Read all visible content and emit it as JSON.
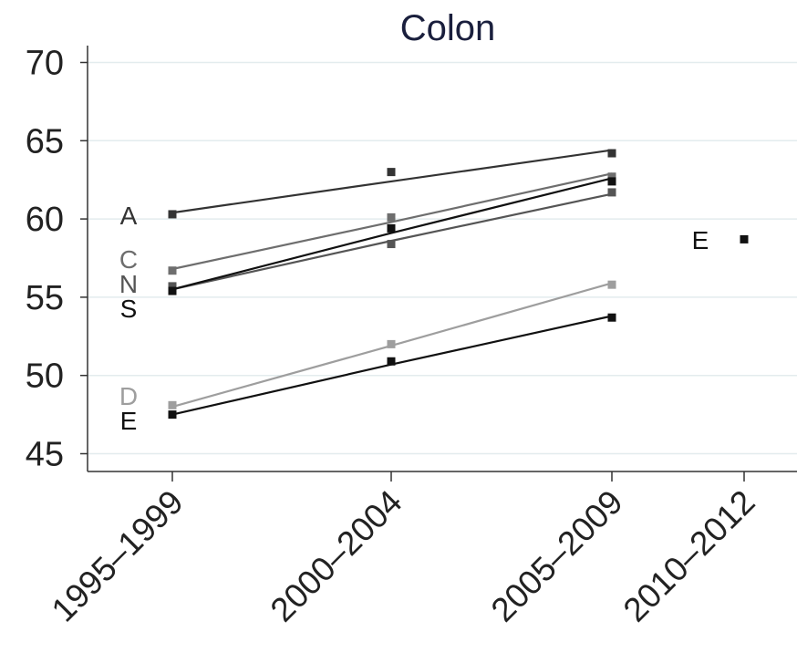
{
  "chart_data": {
    "type": "line",
    "title": "Colon",
    "xlabel": "",
    "ylabel": "",
    "categories": [
      "1995–1999",
      "2000–2004",
      "2005–2009",
      "2010–2012"
    ],
    "ylim": [
      44,
      71
    ],
    "yticks": [
      45,
      50,
      55,
      60,
      65,
      70
    ],
    "grid": true,
    "series": [
      {
        "name": "A",
        "color": "#333333",
        "points": [
          60.3,
          63.0,
          64.2,
          null
        ],
        "trend": [
          60.4,
          62.4,
          64.4,
          null
        ]
      },
      {
        "name": "C",
        "color": "#6e6e6e",
        "points": [
          56.7,
          60.1,
          62.7,
          null
        ],
        "trend": [
          56.8,
          59.8,
          62.9,
          null
        ]
      },
      {
        "name": "N",
        "color": "#555555",
        "points": [
          55.7,
          58.4,
          61.7,
          null
        ],
        "trend": [
          55.5,
          58.6,
          61.6,
          null
        ]
      },
      {
        "name": "S",
        "color": "#111111",
        "points": [
          55.4,
          59.4,
          62.4,
          null
        ],
        "trend": [
          55.5,
          59.1,
          62.6,
          null
        ]
      },
      {
        "name": "D",
        "color": "#9e9e9e",
        "points": [
          48.1,
          52.0,
          55.8,
          null
        ],
        "trend": [
          48.0,
          51.9,
          55.9,
          null
        ]
      },
      {
        "name": "E",
        "color": "#111111",
        "points": [
          47.5,
          50.9,
          53.7,
          58.7
        ],
        "trend": [
          47.5,
          50.7,
          53.8,
          null
        ]
      }
    ]
  }
}
